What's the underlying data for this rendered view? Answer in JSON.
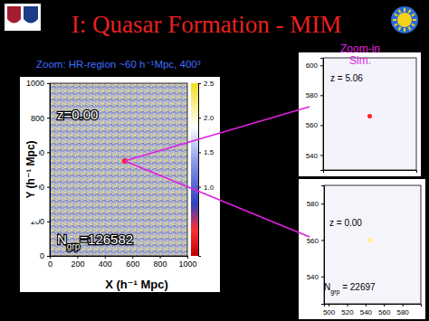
{
  "slide": {
    "title": "I: Quasar Formation - MIM",
    "subtitle": "Zoom: HR-region ~60 h⁻¹Mpc, 400³",
    "callout": [
      "Zoom-in",
      "Sim."
    ]
  },
  "chart_data": [
    {
      "type": "scatter",
      "xlabel": "X (h⁻¹ Mpc)",
      "ylabel": "Y (h⁻¹ Mpc)",
      "xlim": [
        0,
        1000
      ],
      "xticks": [
        0,
        200,
        400,
        600,
        800,
        1000
      ],
      "ylim": [
        0,
        1000
      ],
      "yticks": [
        0,
        200,
        400,
        600,
        800,
        1000
      ],
      "x": [
        545
      ],
      "y": [
        550
      ],
      "color": "#ff2020",
      "marker": "circle",
      "annotations": [
        {
          "text": "z=0.00"
        },
        {
          "base": "N",
          "sub": "grp",
          "text": "=126582"
        }
      ],
      "colorbar": {
        "lim": [
          0,
          2.5
        ],
        "ticks": [
          {
            "value": 1,
            "label": "1.0"
          },
          {
            "value": 1.5,
            "label": "1.5"
          },
          {
            "value": 2,
            "label": "2.0"
          },
          {
            "value": 2.5,
            "label": "2.5"
          }
        ]
      }
    },
    {
      "type": "scatter",
      "tick_labels": "y",
      "xlim": [
        520,
        600
      ],
      "ylim": [
        530,
        605
      ],
      "yticks": [
        540,
        560,
        580,
        600
      ],
      "x": [
        560
      ],
      "y": [
        566
      ],
      "color": "#ff2020",
      "marker": "circle",
      "annotations": [
        {
          "text": "z = 5.06"
        }
      ]
    },
    {
      "type": "scatter",
      "xlim": [
        495,
        600
      ],
      "xticks": [
        500,
        520,
        540,
        560,
        580
      ],
      "ylim": [
        525,
        590
      ],
      "yticks": [
        540,
        560,
        580
      ],
      "x": [
        545
      ],
      "y": [
        560
      ],
      "color": "#fff27a",
      "marker": "circle",
      "annotations": [
        {
          "text": "z = 0.00"
        },
        {
          "base": "N",
          "sub": "grp",
          "text": " = 22697"
        }
      ]
    }
  ]
}
